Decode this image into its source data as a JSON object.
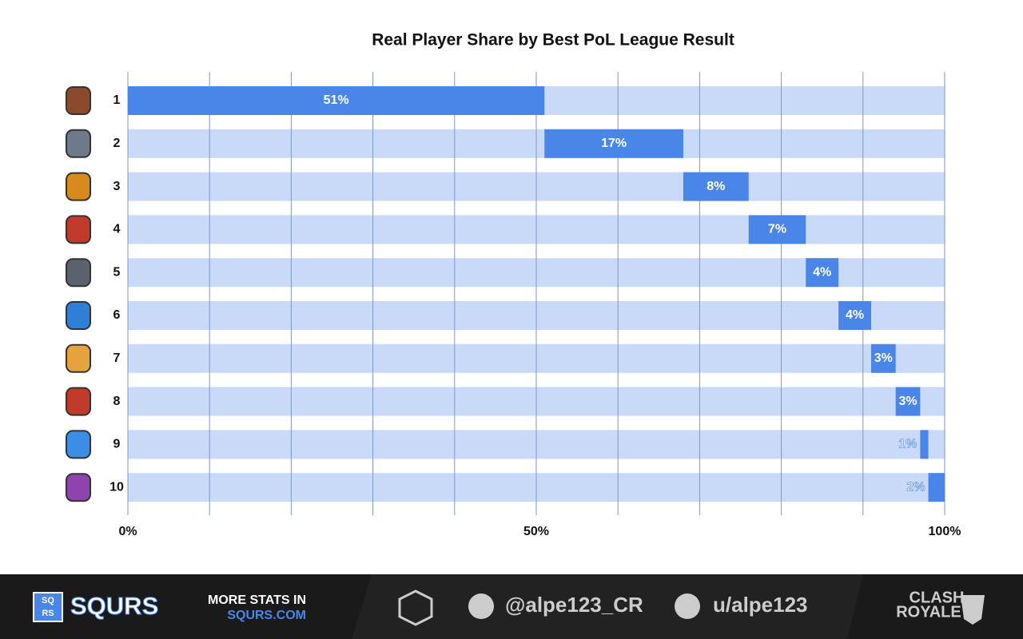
{
  "chart_data": {
    "type": "waterfall",
    "title": "Real Player Share by Best PoL League Result",
    "categories": [
      "1",
      "2",
      "3",
      "4",
      "5",
      "6",
      "7",
      "8",
      "9",
      "10"
    ],
    "values": [
      51,
      17,
      8,
      7,
      4,
      4,
      3,
      3,
      1,
      2
    ],
    "value_labels": [
      "51%",
      "17%",
      "8%",
      "7%",
      "4%",
      "4%",
      "3%",
      "3%",
      "1%",
      "2%"
    ],
    "color": "#4a86e8",
    "track_color": "#c9daf8",
    "xlim": [
      0,
      100
    ],
    "xticks": [
      {
        "value": 0,
        "label": "0%"
      },
      {
        "value": 50,
        "label": "50%"
      },
      {
        "value": 100,
        "label": "100%"
      }
    ],
    "xgrid": [
      10,
      20,
      30,
      40,
      60,
      70,
      80,
      90
    ]
  },
  "footer": {
    "logo_top": "SQ",
    "logo_bottom": "RS",
    "brand": "SQURS",
    "promo_line1": "MORE STATS IN",
    "promo_line2": "SQURS.COM",
    "twitter": "@alpe123_CR",
    "reddit": "u/alpe123",
    "game_line1": "CLASH",
    "game_line2": "ROYALE"
  }
}
